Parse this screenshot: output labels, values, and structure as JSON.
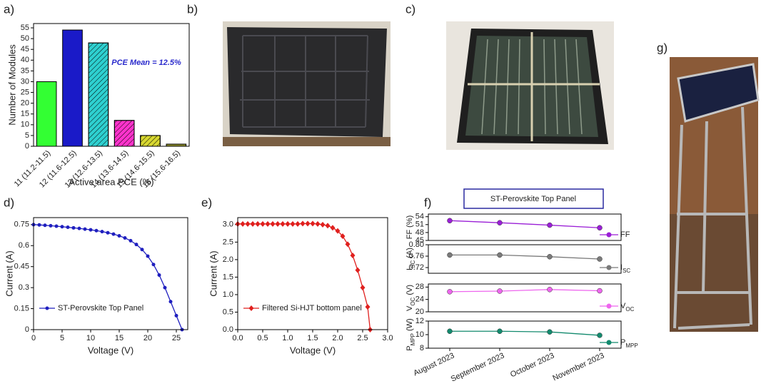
{
  "chart_data": [
    {
      "type": "bar",
      "panel": "a)",
      "xlabel": "Active area PCE (%)",
      "ylabel": "Number of Modules",
      "annotation": "PCE Mean = 12.5%",
      "categories": [
        "11 (11.2-11.5)",
        "12 (11.6-12.5)",
        "13 (12.6-13.5)",
        "14 (13.6-14.5)",
        "15 (14.6-15.5)",
        "16 (15.6-16.5)"
      ],
      "values": [
        30,
        54,
        48,
        12,
        5,
        1
      ],
      "colors": [
        "#33ff33",
        "#1a1ac8",
        "#2ed0d0",
        "#ff33cc",
        "#d8d830",
        "#8c8c2a"
      ],
      "hatched": [
        false,
        false,
        true,
        true,
        true,
        false
      ],
      "ylim": [
        0,
        57
      ],
      "yticks": [
        0,
        5,
        10,
        15,
        20,
        25,
        30,
        35,
        40,
        45,
        50,
        55
      ]
    },
    {
      "type": "line",
      "panel": "d)",
      "xlabel": "Voltage (V)",
      "ylabel": "Current (A)",
      "marker": "circle",
      "x": [
        0,
        1,
        2,
        3,
        4,
        5,
        6,
        7,
        8,
        9,
        10,
        11,
        12,
        13,
        14,
        15,
        16,
        17,
        18,
        19,
        20,
        21,
        22,
        23,
        24,
        25,
        26
      ],
      "series": [
        {
          "name": "ST-Perovskite Top Panel",
          "color": "#1f1fbf",
          "values": [
            0.75,
            0.748,
            0.745,
            0.742,
            0.739,
            0.735,
            0.731,
            0.727,
            0.723,
            0.718,
            0.713,
            0.707,
            0.7,
            0.692,
            0.682,
            0.67,
            0.655,
            0.635,
            0.608,
            0.572,
            0.525,
            0.465,
            0.39,
            0.3,
            0.2,
            0.1,
            0.0
          ]
        }
      ],
      "xlim": [
        0,
        27
      ],
      "xticks": [
        0,
        5,
        10,
        15,
        20,
        25
      ],
      "ylim": [
        0,
        0.8
      ],
      "yticks": [
        0,
        0.15,
        0.3,
        0.45,
        0.6,
        0.75
      ]
    },
    {
      "type": "line",
      "panel": "e)",
      "xlabel": "Voltage (V)",
      "ylabel": "Current (A)",
      "marker": "diamond",
      "x": [
        0,
        0.1,
        0.2,
        0.3,
        0.4,
        0.5,
        0.6,
        0.7,
        0.8,
        0.9,
        1.0,
        1.1,
        1.2,
        1.3,
        1.4,
        1.5,
        1.6,
        1.7,
        1.8,
        1.9,
        2.0,
        2.1,
        2.2,
        2.3,
        2.4,
        2.5,
        2.6,
        2.65
      ],
      "series": [
        {
          "name": "Filtered Si-HJT bottom panel",
          "color": "#e0201e",
          "values": [
            3.02,
            3.02,
            3.02,
            3.02,
            3.02,
            3.02,
            3.02,
            3.02,
            3.02,
            3.02,
            3.02,
            3.02,
            3.02,
            3.03,
            3.03,
            3.03,
            3.02,
            3.0,
            2.97,
            2.91,
            2.82,
            2.67,
            2.44,
            2.12,
            1.7,
            1.2,
            0.65,
            0.0
          ]
        }
      ],
      "xlim": [
        0,
        3.0
      ],
      "xticks": [
        {
          "value": 0,
          "label": "0.0"
        },
        0.5,
        {
          "value": 1,
          "label": "1.0"
        },
        1.5,
        {
          "value": 2,
          "label": "2.0"
        },
        2.5,
        {
          "value": 3,
          "label": "3.0"
        }
      ],
      "ylim": [
        0,
        3.2
      ],
      "yticks": [
        {
          "value": 0,
          "label": "0.0"
        },
        0.5,
        {
          "value": 1,
          "label": "1.0"
        },
        1.5,
        {
          "value": 2,
          "label": "2.0"
        },
        2.5,
        {
          "value": 3,
          "label": "3.0"
        }
      ]
    },
    {
      "type": "line_stack",
      "panel": "f)",
      "title": "ST-Perovskite Top Panel",
      "categories": [
        "August 2023",
        "September 2023",
        "October 2023",
        "November 2023"
      ],
      "series": [
        {
          "name": {
            "main": "FF"
          },
          "ylabel": {
            "main": "FF",
            "unit": "(%)"
          },
          "color": "#9a1fd6",
          "values": [
            52.5,
            51.7,
            50.8,
            49.8
          ],
          "ylim": [
            45,
            55
          ],
          "yticks": [
            45,
            48,
            51,
            54
          ]
        },
        {
          "name": {
            "main": "I",
            "sub": "SC"
          },
          "ylabel": {
            "main": "I",
            "sub": "SC",
            "unit": "(A)"
          },
          "color": "#7a7a7a",
          "values": [
            0.764,
            0.764,
            0.758,
            0.75
          ],
          "ylim": [
            0.7,
            0.8
          ],
          "yticks": [
            0.72,
            0.76,
            {
              "value": 0.8,
              "label": "0.80"
            }
          ]
        },
        {
          "name": {
            "main": "V",
            "sub": "OC"
          },
          "ylabel": {
            "main": "V",
            "sub": "OC",
            "unit": "(V)"
          },
          "color": "#ee66ee",
          "values": [
            26.5,
            26.7,
            27.2,
            26.8
          ],
          "ylim": [
            20,
            29
          ],
          "yticks": [
            20,
            24,
            28
          ]
        },
        {
          "name": {
            "main": "P",
            "sub": "MPP"
          },
          "ylabel": {
            "main": "P",
            "sub": "MPP",
            "unit": "(W)"
          },
          "color": "#138a6e",
          "values": [
            10.5,
            10.5,
            10.4,
            9.9
          ],
          "ylim": [
            8,
            12
          ],
          "yticks": [
            8,
            10,
            12
          ]
        }
      ]
    }
  ],
  "photo_labels": [
    "b)",
    "c)",
    "g)"
  ]
}
